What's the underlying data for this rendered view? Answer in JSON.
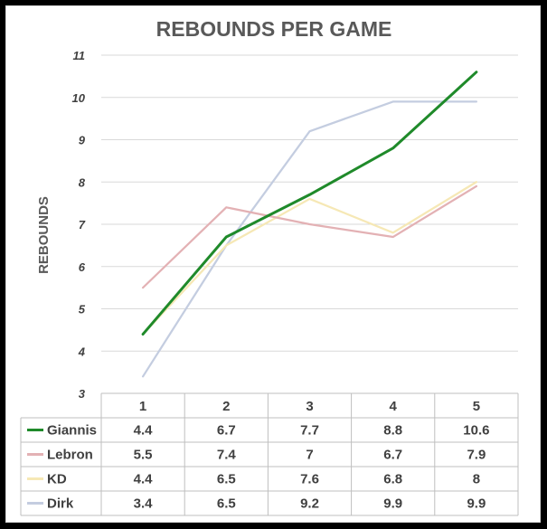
{
  "chart_data": {
    "type": "line",
    "title": "REBOUNDS PER GAME",
    "ylabel": "REBOUNDS",
    "xlabel": "",
    "ylim": [
      3,
      11
    ],
    "yticks": [
      3,
      4,
      5,
      6,
      7,
      8,
      9,
      10,
      11
    ],
    "categories": [
      "1",
      "2",
      "3",
      "4",
      "5"
    ],
    "grid": true,
    "legend": "data-table",
    "series": [
      {
        "name": "Giannis",
        "color": "#1f8a2a",
        "values": [
          4.4,
          6.7,
          7.7,
          8.8,
          10.6
        ],
        "labels": [
          "4.4",
          "6.7",
          "7.7",
          "8.8",
          "10.6"
        ]
      },
      {
        "name": "Lebron",
        "color": "#e3b1b4",
        "values": [
          5.5,
          7.4,
          7,
          6.7,
          7.9
        ],
        "labels": [
          "5.5",
          "7.4",
          "7",
          "6.7",
          "7.9"
        ]
      },
      {
        "name": "KD",
        "color": "#f6e8b5",
        "values": [
          4.4,
          6.5,
          7.6,
          6.8,
          8
        ],
        "labels": [
          "4.4",
          "6.5",
          "7.6",
          "6.8",
          "8"
        ]
      },
      {
        "name": "Dirk",
        "color": "#c4cde0",
        "values": [
          3.4,
          6.5,
          9.2,
          9.9,
          9.9
        ],
        "labels": [
          "3.4",
          "6.5",
          "9.2",
          "9.9",
          "9.9"
        ]
      }
    ]
  }
}
